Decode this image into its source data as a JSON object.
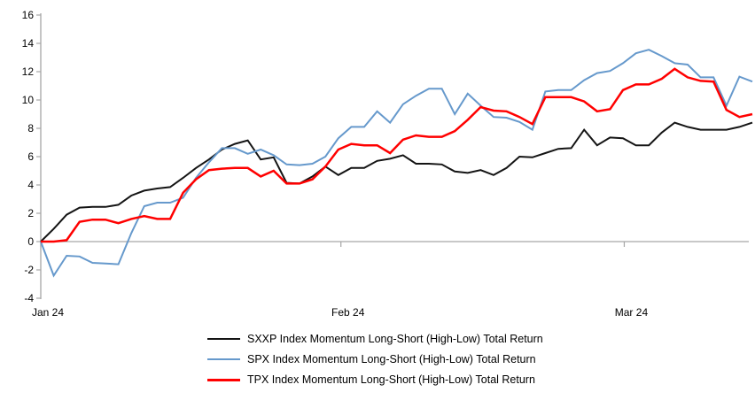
{
  "chart_data": {
    "type": "line",
    "title": "",
    "xlabel": "",
    "ylabel": "",
    "x_axis": {
      "tick_labels": [
        "Jan 24",
        "Feb 24",
        "Mar 24"
      ],
      "tick_day_positions": [
        0,
        23.2,
        45.1
      ]
    },
    "y_axis": {
      "ticks": [
        16,
        14,
        12,
        10,
        8,
        6,
        4,
        2,
        0,
        "-2",
        "-4"
      ],
      "tick_values": [
        16,
        14,
        12,
        10,
        8,
        6,
        4,
        2,
        0,
        -2,
        -4
      ],
      "range": [
        -4,
        16
      ]
    },
    "grid": "zero-baseline-only",
    "legend_position": "bottom",
    "axis_color": "#a6a6a6",
    "text_color": "#000000",
    "series": [
      {
        "name": "SXXP Index Momentum Long-Short (High-Low) Total Return",
        "color": "#141414",
        "stroke_width": 2,
        "values": [
          0,
          0.9,
          1.9,
          2.4,
          2.45,
          2.45,
          2.6,
          3.25,
          3.6,
          3.75,
          3.85,
          4.5,
          5.2,
          5.8,
          6.5,
          6.9,
          7.15,
          5.8,
          5.95,
          4.15,
          4.1,
          4.6,
          5.3,
          4.7,
          5.2,
          5.2,
          5.7,
          5.85,
          6.1,
          5.5,
          5.5,
          5.45,
          4.95,
          4.85,
          5.05,
          4.7,
          5.2,
          6.0,
          5.95,
          6.25,
          6.55,
          6.6,
          7.9,
          6.8,
          7.35,
          7.3,
          6.8,
          6.8,
          7.7,
          8.4,
          8.1,
          7.9,
          7.9,
          7.9,
          8.1,
          8.4
        ]
      },
      {
        "name": "SPX Index Momentum Long-Short (High-Low) Total Return",
        "color": "#6699cc",
        "stroke_width": 2,
        "values": [
          0,
          -2.4,
          -1.0,
          -1.05,
          -1.5,
          -1.55,
          -1.6,
          0.6,
          2.5,
          2.75,
          2.75,
          3.1,
          4.5,
          5.6,
          6.6,
          6.6,
          6.2,
          6.5,
          6.1,
          5.45,
          5.4,
          5.5,
          6.0,
          7.3,
          8.1,
          8.1,
          9.2,
          8.4,
          9.7,
          10.3,
          10.8,
          10.8,
          9.0,
          10.45,
          9.6,
          8.8,
          8.75,
          8.45,
          7.9,
          10.6,
          10.7,
          10.7,
          11.4,
          11.9,
          12.05,
          12.6,
          13.3,
          13.55,
          13.1,
          12.6,
          12.5,
          11.6,
          11.6,
          9.6,
          11.65,
          11.3
        ]
      },
      {
        "name": "TPX Index Momentum Long-Short (High-Low) Total Return",
        "color": "#ff0000",
        "stroke_width": 2.5,
        "values": [
          0,
          0,
          0.1,
          1.4,
          1.55,
          1.55,
          1.3,
          1.6,
          1.8,
          1.6,
          1.6,
          3.45,
          4.4,
          5.05,
          5.15,
          5.2,
          5.2,
          4.6,
          5.0,
          4.1,
          4.1,
          4.4,
          5.3,
          6.5,
          6.9,
          6.8,
          6.8,
          6.25,
          7.2,
          7.5,
          7.4,
          7.4,
          7.8,
          8.6,
          9.5,
          9.25,
          9.2,
          8.8,
          8.3,
          10.2,
          10.2,
          10.2,
          9.9,
          9.2,
          9.35,
          10.7,
          11.1,
          11.1,
          11.5,
          12.2,
          11.6,
          11.35,
          11.3,
          9.3,
          8.8,
          9.0
        ]
      }
    ]
  }
}
